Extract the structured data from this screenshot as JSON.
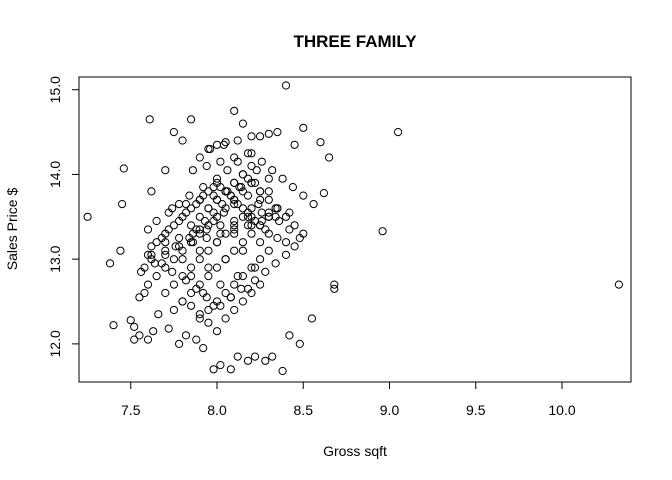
{
  "chart_data": {
    "type": "scatter",
    "title": "THREE FAMILY",
    "xlabel": "Gross sqft",
    "ylabel": "Sales Price $",
    "xlim": [
      7.2,
      10.4
    ],
    "ylim": [
      11.55,
      15.15
    ],
    "x_ticks": [
      7.5,
      8.0,
      8.5,
      9.0,
      9.5,
      10.0
    ],
    "x_tick_labels": [
      "7.5",
      "8.0",
      "8.5",
      "9.0",
      "9.5",
      "10.0"
    ],
    "y_ticks": [
      12.0,
      13.0,
      14.0,
      15.0
    ],
    "y_tick_labels": [
      "12.0",
      "13.0",
      "14.0",
      "15.0"
    ],
    "grid": false,
    "marker": "open-circle",
    "series": [
      {
        "x": [
          7.25,
          7.38,
          7.4,
          7.44,
          7.45,
          7.46,
          7.5,
          7.52,
          7.52,
          7.55,
          7.58,
          7.6,
          7.61,
          7.62,
          7.63,
          7.66,
          7.7,
          7.72,
          7.75,
          7.78,
          7.8,
          7.82,
          7.85,
          7.88,
          7.9,
          7.92,
          7.95,
          7.98,
          8.0,
          8.02,
          8.05,
          8.08,
          8.1,
          8.12,
          8.15,
          8.18,
          8.2,
          8.22,
          8.25,
          8.28,
          8.3,
          8.32,
          8.35,
          8.38,
          8.4,
          8.42,
          8.45,
          8.48,
          8.5,
          8.55,
          8.6,
          8.62,
          8.65,
          8.68,
          8.68,
          8.96,
          9.05,
          10.33,
          7.55,
          7.58,
          7.6,
          7.62,
          7.65,
          7.68,
          7.7,
          7.72,
          7.75,
          7.78,
          7.8,
          7.82,
          7.85,
          7.88,
          7.9,
          7.92,
          7.95,
          7.98,
          8.0,
          8.02,
          8.05,
          8.08,
          8.1,
          8.12,
          8.15,
          8.18,
          8.2,
          8.22,
          8.25,
          8.28,
          8.3,
          8.35,
          8.4,
          8.45,
          7.6,
          7.65,
          7.7,
          7.75,
          7.8,
          7.85,
          7.9,
          7.95,
          8.0,
          8.05,
          8.1,
          8.15,
          8.2,
          8.25,
          8.3,
          8.35,
          8.4,
          8.45,
          8.5,
          7.7,
          7.75,
          7.8,
          7.85,
          7.9,
          7.95,
          8.0,
          8.05,
          8.1,
          8.15,
          8.2,
          8.25,
          8.3,
          7.8,
          7.85,
          7.9,
          7.95,
          8.0,
          8.05,
          8.1,
          8.15,
          8.2,
          8.25,
          8.3,
          8.35,
          7.85,
          7.9,
          7.95,
          8.0,
          8.05,
          8.1,
          8.15,
          8.2,
          8.25,
          7.88,
          7.93,
          7.98,
          8.03,
          8.08,
          8.13,
          8.18,
          8.23,
          7.95,
          8.0,
          8.05,
          8.1,
          8.15,
          8.2,
          7.9,
          7.95,
          8.0,
          8.05,
          8.1,
          8.15,
          8.2,
          8.25,
          8.3,
          7.75,
          7.8,
          7.85,
          7.9,
          7.95,
          8.0,
          8.05,
          8.1,
          8.15,
          8.2,
          8.25,
          7.62,
          7.68,
          7.74,
          7.82,
          7.88,
          7.94,
          8.02,
          8.08,
          8.14,
          8.22,
          8.28,
          8.34,
          8.4,
          7.7,
          7.78,
          7.86,
          7.94,
          8.02,
          8.1,
          8.18,
          8.26,
          8.34,
          7.8,
          7.9,
          8.0,
          8.1,
          8.2,
          8.3,
          7.85,
          7.95,
          8.05,
          8.15,
          8.25,
          7.92,
          8.02,
          8.12,
          8.22,
          7.98,
          8.08,
          8.18,
          7.6,
          7.65,
          7.72,
          7.78,
          7.84,
          7.92,
          8.0,
          8.06,
          8.12,
          8.2,
          8.26,
          8.32,
          8.38,
          8.44,
          8.5,
          8.56,
          7.56,
          7.64,
          7.7,
          7.76,
          7.84,
          7.9,
          7.98,
          8.04,
          8.1,
          8.18,
          8.24,
          8.3,
          8.36,
          8.42,
          8.48,
          7.62,
          7.7,
          7.78,
          7.86,
          7.94,
          8.02,
          8.1,
          8.18,
          8.26,
          8.34,
          8.42,
          7.74,
          7.82,
          7.9,
          7.98,
          8.06,
          8.14,
          8.22,
          8.3,
          7.86,
          7.94,
          8.02,
          8.1,
          8.18,
          7.96,
          8.04,
          8.12
        ],
        "y": [
          13.5,
          12.95,
          12.22,
          13.1,
          13.65,
          14.07,
          12.28,
          12.2,
          12.05,
          12.1,
          12.6,
          12.05,
          14.65,
          13.8,
          12.15,
          12.35,
          14.05,
          12.18,
          14.5,
          12.0,
          14.4,
          12.1,
          14.65,
          12.05,
          14.2,
          11.95,
          14.3,
          11.7,
          14.35,
          11.75,
          14.38,
          11.7,
          14.75,
          11.85,
          14.6,
          11.8,
          14.45,
          11.85,
          14.45,
          11.8,
          14.48,
          11.85,
          14.5,
          11.68,
          15.05,
          12.1,
          14.35,
          12.0,
          14.55,
          12.3,
          14.38,
          13.78,
          14.2,
          12.65,
          12.7,
          13.33,
          14.5,
          12.7,
          12.55,
          12.9,
          13.05,
          13.15,
          13.2,
          13.25,
          13.3,
          13.35,
          13.4,
          13.45,
          13.5,
          13.55,
          13.6,
          13.65,
          13.7,
          13.75,
          13.8,
          13.85,
          13.9,
          13.85,
          13.8,
          13.75,
          13.7,
          13.65,
          13.6,
          13.55,
          13.5,
          13.45,
          13.4,
          13.35,
          13.3,
          13.25,
          13.2,
          13.15,
          12.7,
          12.8,
          12.9,
          13.0,
          13.1,
          13.2,
          13.3,
          13.4,
          13.5,
          13.6,
          13.7,
          13.8,
          13.9,
          13.8,
          13.7,
          13.6,
          13.5,
          13.4,
          13.3,
          12.6,
          12.7,
          12.8,
          12.9,
          13.0,
          13.1,
          13.2,
          13.3,
          13.4,
          13.5,
          13.6,
          13.7,
          13.8,
          12.5,
          12.6,
          12.7,
          12.8,
          12.9,
          13.0,
          13.1,
          13.2,
          13.3,
          13.4,
          13.5,
          13.6,
          13.4,
          13.5,
          13.6,
          13.7,
          13.8,
          13.9,
          14.0,
          13.9,
          13.8,
          13.35,
          13.45,
          13.55,
          13.65,
          13.75,
          13.85,
          13.95,
          14.05,
          13.6,
          13.7,
          13.8,
          13.9,
          14.0,
          14.1,
          12.3,
          12.4,
          12.5,
          12.6,
          12.7,
          12.8,
          12.9,
          13.0,
          13.1,
          12.4,
          12.5,
          12.45,
          12.35,
          12.25,
          12.15,
          12.3,
          12.4,
          12.5,
          12.6,
          12.7,
          13.0,
          12.95,
          12.85,
          12.75,
          12.65,
          12.55,
          12.45,
          12.55,
          12.65,
          12.75,
          12.85,
          12.95,
          13.05,
          13.2,
          13.25,
          13.3,
          13.35,
          13.4,
          13.45,
          13.5,
          13.55,
          13.6,
          13.0,
          13.1,
          13.2,
          13.3,
          13.4,
          13.5,
          12.8,
          12.9,
          13.0,
          13.1,
          13.2,
          12.6,
          12.7,
          12.8,
          12.9,
          12.45,
          12.55,
          12.65,
          13.35,
          13.45,
          13.55,
          13.65,
          13.75,
          13.85,
          13.95,
          14.05,
          14.15,
          14.25,
          14.15,
          14.05,
          13.95,
          13.85,
          13.75,
          13.65,
          12.85,
          12.95,
          13.05,
          13.15,
          13.25,
          13.35,
          13.45,
          13.55,
          13.65,
          13.75,
          13.65,
          13.55,
          13.45,
          13.35,
          13.25,
          13.05,
          13.1,
          13.15,
          13.2,
          13.25,
          13.3,
          13.35,
          13.4,
          13.45,
          13.5,
          13.55,
          13.6,
          13.65,
          13.7,
          13.75,
          13.8,
          13.85,
          13.9,
          13.95,
          14.05,
          14.1,
          14.15,
          14.2,
          14.25,
          14.3,
          14.35,
          14.4
        ]
      }
    ]
  }
}
